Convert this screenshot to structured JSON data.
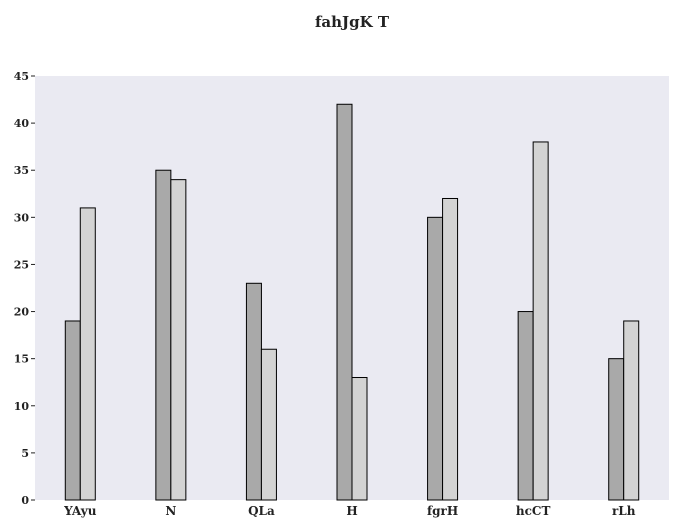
{
  "chart_data": {
    "type": "bar",
    "title": "fahJgK T",
    "xlabel": "",
    "ylabel": "",
    "categories": [
      "YAyu",
      "N",
      "QLa",
      "H",
      "fgrH",
      "hcCT",
      "rLh"
    ],
    "series": [
      {
        "values": [
          19,
          35,
          23,
          42,
          30,
          20,
          15
        ],
        "color": "#a9a9a9"
      },
      {
        "values": [
          31,
          34,
          16,
          13,
          32,
          38,
          19
        ],
        "color": "#d3d3d3"
      }
    ],
    "ylim": [
      0,
      45
    ],
    "yticks": [
      0,
      5,
      10,
      15,
      20,
      25,
      30,
      35,
      40,
      45
    ],
    "grid": false,
    "plot_background": "#eaeaf2",
    "bar_edge_color": "#000000"
  }
}
